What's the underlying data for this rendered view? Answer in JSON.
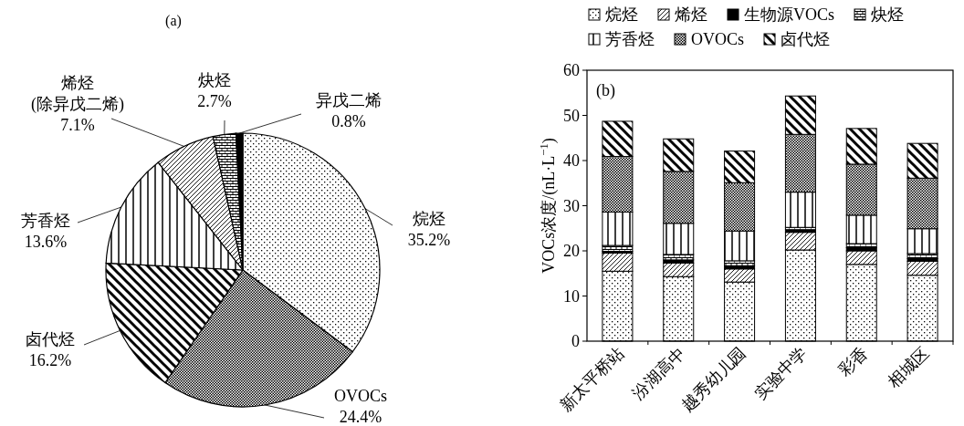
{
  "chart_data": [
    {
      "type": "pie",
      "title": "(a)",
      "categories": [
        "烷烃",
        "OVOCs",
        "卤代烃",
        "芳香烃",
        "烯烃(除异戊二烯)",
        "炔烃",
        "异戊二烯"
      ],
      "values": [
        35.2,
        24.4,
        16.2,
        13.6,
        7.1,
        2.7,
        0.8
      ],
      "value_labels": [
        "35.2%",
        "24.4%",
        "16.2%",
        "13.6%",
        "7.1%",
        "2.7%",
        "0.8%"
      ],
      "colors": [
        "#000000",
        "#000000",
        "#000000",
        "#000000",
        "#000000",
        "#000000",
        "#000000"
      ]
    },
    {
      "type": "bar",
      "stacked": true,
      "title": "(b)",
      "ylabel": "VOCs浓度/(nL·L$^{−1}$)",
      "categories": [
        "新太平桥站",
        "汾湖高中",
        "越秀幼儿园",
        "实验中学",
        "彩香",
        "相城区"
      ],
      "ylim": [
        0,
        60
      ],
      "yticks": [
        0,
        10,
        20,
        30,
        40,
        50,
        60
      ],
      "legend": "top",
      "grid": false,
      "series": [
        {
          "name": "烷烃",
          "color": "#000000",
          "values": [
            15.5,
            14.3,
            13.1,
            20.2,
            17.0,
            14.6
          ]
        },
        {
          "name": "烯烃",
          "color": "#000000",
          "values": [
            4.0,
            3.0,
            2.9,
            3.9,
            3.0,
            3.1
          ]
        },
        {
          "name": "生物源VOCs",
          "color": "#000000",
          "values": [
            0.4,
            0.7,
            0.7,
            0.6,
            0.7,
            0.6
          ]
        },
        {
          "name": "炔烃",
          "color": "#000000",
          "values": [
            1.3,
            1.2,
            1.1,
            0.5,
            0.9,
            1.1
          ]
        },
        {
          "name": "芳香烃",
          "color": "#000000",
          "values": [
            7.4,
            6.9,
            6.6,
            7.8,
            6.3,
            5.5
          ]
        },
        {
          "name": "OVOCs",
          "color": "#000000",
          "values": [
            12.3,
            11.5,
            10.7,
            12.8,
            11.3,
            11.2
          ]
        },
        {
          "name": "卤代烃",
          "color": "#000000",
          "values": [
            7.8,
            7.2,
            7.0,
            8.5,
            7.9,
            7.7
          ]
        }
      ]
    }
  ]
}
